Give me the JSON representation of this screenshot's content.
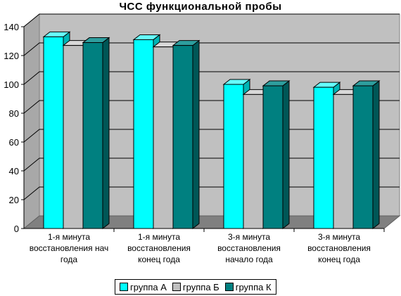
{
  "chart_data": {
    "type": "bar",
    "title": "ЧСС  функциональной  пробы",
    "xlabel": "",
    "ylabel": "",
    "ylim": [
      0,
      140
    ],
    "yticks": [
      0,
      20,
      40,
      60,
      80,
      100,
      120,
      140
    ],
    "grid": true,
    "legend_position": "bottom",
    "categories": [
      [
        "1-я минута",
        "восстановления  нач",
        "года"
      ],
      [
        "1-я минута",
        "восстановления",
        "конец  года"
      ],
      [
        "3-я минута",
        "восстановления",
        "начало  года"
      ],
      [
        "3-я минута",
        "восстановления",
        "конец  года"
      ]
    ],
    "series": [
      {
        "name": "группа А",
        "color": "#00ffff",
        "side": "#00b5b5",
        "topc": "#66ffff",
        "values": [
          133,
          131,
          100,
          98
        ]
      },
      {
        "name": "группа Б",
        "color": "#bfbfbf",
        "side": "#8c8c8c",
        "topc": "#d9d9d9",
        "values": [
          127,
          126,
          93,
          93
        ]
      },
      {
        "name": "группа К",
        "color": "#008080",
        "side": "#005757",
        "topc": "#2e9e9e",
        "values": [
          129,
          127,
          99,
          99
        ]
      }
    ]
  }
}
